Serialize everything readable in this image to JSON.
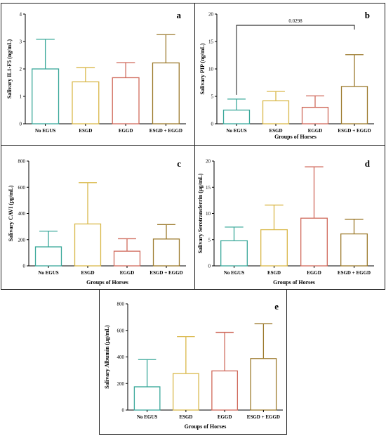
{
  "chart_data": [
    {
      "id": "a",
      "type": "bar",
      "panel_label": "a",
      "ylabel": "Salivary IL1-F5 (ng/mL)",
      "xlabel": "",
      "categories": [
        "No EGUS",
        "ESGD",
        "EGGD",
        "ESGD + EGGD"
      ],
      "values": [
        2.0,
        1.53,
        1.68,
        2.22
      ],
      "errors": [
        1.08,
        0.52,
        0.55,
        1.03
      ],
      "yticks": [
        0,
        1,
        2,
        3,
        4
      ],
      "ylim": [
        0,
        4
      ]
    },
    {
      "id": "b",
      "type": "bar",
      "panel_label": "b",
      "ylabel": "Salivary PIP (ng/mL)",
      "xlabel": "Groups of Horses",
      "categories": [
        "No EGUS",
        "ESGD",
        "EGGD",
        "ESGD + EGGD"
      ],
      "values": [
        2.5,
        4.2,
        3.0,
        6.8
      ],
      "errors": [
        2.0,
        1.7,
        2.1,
        5.8
      ],
      "yticks": [
        0,
        5,
        10,
        15,
        20
      ],
      "ylim": [
        0,
        20
      ],
      "significance": {
        "from": 0,
        "to": 3,
        "label": "0.0298"
      }
    },
    {
      "id": "c",
      "type": "bar",
      "panel_label": "c",
      "ylabel": "Salivary CAVI (pg/mL)",
      "xlabel": "Groups of Horses",
      "categories": [
        "No EGUS",
        "ESGD",
        "EGGD",
        "ESGD + EGGD"
      ],
      "values": [
        145,
        320,
        112,
        205
      ],
      "errors": [
        120,
        315,
        95,
        110
      ],
      "yticks": [
        0,
        200,
        400,
        600,
        800
      ],
      "ylim": [
        0,
        800
      ]
    },
    {
      "id": "d",
      "type": "bar",
      "panel_label": "d",
      "ylabel": "Salivary Serotransferrin (µg/mL)",
      "xlabel": "Groups of Horses",
      "categories": [
        "No EGUS",
        "ESGD",
        "EGGD",
        "ESGD + EGGD"
      ],
      "values": [
        4.8,
        6.9,
        9.1,
        6.1
      ],
      "errors": [
        2.6,
        4.7,
        9.8,
        2.8
      ],
      "yticks": [
        0,
        5,
        10,
        15,
        20
      ],
      "ylim": [
        0,
        20
      ]
    },
    {
      "id": "e",
      "type": "bar",
      "panel_label": "e",
      "ylabel": "Salivary Albumin (µg/mL)",
      "xlabel": "Groups of Horses",
      "categories": [
        "No EGUS",
        "ESGD",
        "EGGD",
        "ESGD + EGGD"
      ],
      "values": [
        175,
        275,
        295,
        388
      ],
      "errors": [
        205,
        278,
        290,
        262
      ],
      "yticks": [
        0,
        200,
        400,
        600,
        800
      ],
      "ylim": [
        0,
        800
      ]
    }
  ],
  "colors": {
    "series": [
      "#3aa89a",
      "#d9b84a",
      "#d06a5c",
      "#9c7a2c"
    ],
    "axis": "#000000",
    "frame": "#222222"
  }
}
